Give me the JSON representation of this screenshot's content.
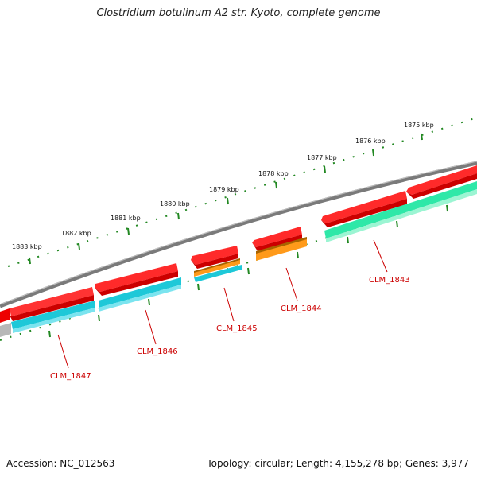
{
  "title": "Clostridium botulinum A2 str. Kyoto, complete genome",
  "footer": {
    "accession": "Accession: NC_012563",
    "summary": "Topology: circular; Length: 4,155,278 bp; Genes: 3,977"
  },
  "scale_labels": [
    "1875 kbp",
    "1876 kbp",
    "1877 kbp",
    "1878 kbp",
    "1879 kbp",
    "1880 kbp",
    "1881 kbp",
    "1882 kbp",
    "1883 kbp"
  ],
  "genes": [
    "CLM_1843",
    "CLM_1844",
    "CLM_1845",
    "CLM_1846",
    "CLM_1847"
  ],
  "colors": {
    "backbone": "#888888",
    "cds": "#ff0000",
    "gene_teal": "#1ec8d8",
    "gene_green": "#2ee8a8",
    "gene_orange": "#ff9a1a",
    "tick": "#228822",
    "label": "#cc0000"
  }
}
